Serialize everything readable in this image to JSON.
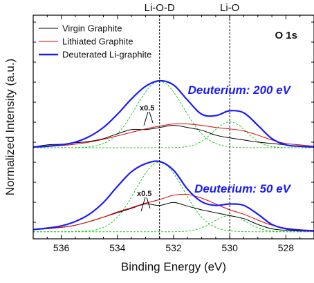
{
  "chart_data": {
    "type": "line",
    "title": "O 1s",
    "xlabel": "Binding Energy (eV)",
    "ylabel": "Normalized Intensity (a.u.)",
    "xlim": [
      537,
      527
    ],
    "x_reversed": true,
    "x_ticks": [
      536,
      534,
      532,
      530,
      528
    ],
    "y_ticks_labeled": false,
    "legend_position": "top-left",
    "reference_lines": [
      {
        "label": "Li-O-D",
        "x": 532.5
      },
      {
        "label": "Li-O",
        "x": 530.0
      }
    ],
    "series_styles": [
      {
        "name": "Virgin Graphite",
        "color": "#000000"
      },
      {
        "name": "Lithiated Graphite",
        "color": "#dd0000"
      },
      {
        "name": "Deuterated Li-graphite",
        "color": "#1a1aff"
      }
    ],
    "fit_color": "#22cc22",
    "panels": [
      {
        "label": "Deuterium: 200 eV",
        "label_color": "#1a1aff",
        "annotation": "x0.5",
        "series": [
          {
            "name": "Virgin Graphite",
            "x": [
              537,
              536.5,
              536,
              535.5,
              535,
              534.5,
              534,
              533.5,
              533,
              532.5,
              532,
              531.5,
              531,
              530.5,
              530,
              529.5,
              529,
              528.5,
              528,
              527.5,
              527
            ],
            "y": [
              0.05,
              0.08,
              0.09,
              0.11,
              0.13,
              0.17,
              0.24,
              0.3,
              0.3,
              0.33,
              0.36,
              0.33,
              0.29,
              0.22,
              0.18,
              0.15,
              0.12,
              0.1,
              0.08,
              0.06,
              0.05
            ]
          },
          {
            "name": "Lithiated Graphite",
            "x": [
              537,
              536.5,
              536,
              535.5,
              535,
              534.5,
              534,
              533.5,
              533,
              532.5,
              532,
              531.5,
              531,
              530.5,
              530,
              529.5,
              529,
              528.5,
              528,
              527.5,
              527
            ],
            "y": [
              0.05,
              0.06,
              0.07,
              0.09,
              0.12,
              0.16,
              0.21,
              0.26,
              0.31,
              0.35,
              0.38,
              0.38,
              0.36,
              0.33,
              0.31,
              0.28,
              0.22,
              0.15,
              0.1,
              0.08,
              0.06
            ]
          },
          {
            "name": "Deuterated Li-graphite",
            "x": [
              537,
              536.5,
              536,
              535.5,
              535,
              534.5,
              534,
              533.5,
              533,
              532.5,
              532,
              531.5,
              531,
              530.5,
              530,
              529.5,
              529,
              528.5,
              528,
              527.5,
              527
            ],
            "y": [
              0.05,
              0.06,
              0.08,
              0.12,
              0.2,
              0.33,
              0.52,
              0.74,
              0.92,
              1.0,
              0.94,
              0.72,
              0.52,
              0.5,
              0.57,
              0.54,
              0.36,
              0.17,
              0.08,
              0.06,
              0.05
            ]
          }
        ]
      },
      {
        "label": "Deuterium: 50 eV",
        "label_color": "#1a1aff",
        "annotation": "x0.5",
        "series": [
          {
            "name": "Virgin Graphite",
            "x": [
              537,
              536.5,
              536,
              535.5,
              535,
              534.5,
              534,
              533.5,
              533,
              532.5,
              532,
              531.5,
              531,
              530.5,
              530,
              529.5,
              529,
              528.5,
              528,
              527.5,
              527
            ],
            "y": [
              0.07,
              0.09,
              0.1,
              0.13,
              0.18,
              0.24,
              0.3,
              0.36,
              0.42,
              0.4,
              0.44,
              0.39,
              0.34,
              0.3,
              0.26,
              0.22,
              0.14,
              0.08,
              0.06,
              0.05,
              0.05
            ]
          },
          {
            "name": "Lithiated Graphite",
            "x": [
              537,
              536.5,
              536,
              535.5,
              535,
              534.5,
              534,
              533.5,
              533,
              532.5,
              532,
              531.5,
              531,
              530.5,
              530,
              529.5,
              529,
              528.5,
              528,
              527.5,
              527
            ],
            "y": [
              0.07,
              0.08,
              0.1,
              0.13,
              0.18,
              0.24,
              0.31,
              0.37,
              0.43,
              0.48,
              0.54,
              0.55,
              0.5,
              0.42,
              0.34,
              0.28,
              0.2,
              0.13,
              0.09,
              0.07,
              0.06
            ]
          },
          {
            "name": "Deuterated Li-graphite",
            "x": [
              537,
              536.5,
              536,
              535.5,
              535,
              534.5,
              534,
              533.5,
              533,
              532.5,
              532,
              531.5,
              531,
              530.5,
              530,
              529.5,
              529,
              528.5,
              528,
              527.5,
              527
            ],
            "y": [
              0.07,
              0.09,
              0.12,
              0.18,
              0.28,
              0.44,
              0.66,
              0.86,
              0.97,
              1.0,
              0.88,
              0.62,
              0.45,
              0.4,
              0.42,
              0.4,
              0.28,
              0.14,
              0.08,
              0.06,
              0.05
            ]
          }
        ]
      }
    ]
  }
}
